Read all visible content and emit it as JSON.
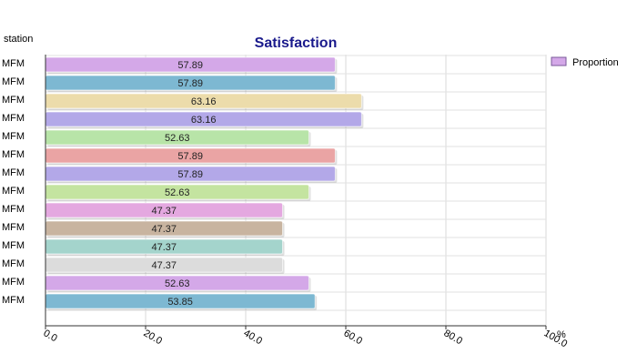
{
  "chart_data": {
    "type": "bar",
    "orientation": "horizontal",
    "title": "Satisfaction",
    "ylabel": "station",
    "xlabel": "%",
    "categories": [
      "MFM",
      "MFM",
      "MFM",
      "MFM",
      "MFM",
      "MFM",
      "MFM",
      "MFM",
      "MFM",
      "MFM",
      "MFM",
      "MFM",
      "MFM",
      "MFM"
    ],
    "series": [
      {
        "name": "Proportion",
        "values": [
          57.89,
          57.89,
          63.16,
          63.16,
          52.63,
          57.89,
          57.89,
          52.63,
          47.37,
          47.37,
          47.37,
          47.37,
          52.63,
          53.85
        ]
      }
    ],
    "value_labels": [
      "57.89",
      "57.89",
      "63.16",
      "63.16",
      "52.63",
      "57.89",
      "57.89",
      "52.63",
      "47.37",
      "47.37",
      "47.37",
      "47.37",
      "52.63",
      "53.85"
    ],
    "bar_colors": [
      "#d4a8e8",
      "#7db8d2",
      "#ecdcab",
      "#b3a8e8",
      "#b8e4a8",
      "#eaa4a4",
      "#b3a8e8",
      "#c4e4a0",
      "#e4a8e0",
      "#c8b4a0",
      "#a4d4cc",
      "#dcdcdc",
      "#d4a8e8",
      "#7db8d2"
    ],
    "legend_color": "#d4a8e8",
    "xlim": [
      0,
      100
    ],
    "x_ticks": [
      "0.0",
      "20.0",
      "40.0",
      "60.0",
      "80.0",
      "100.0"
    ],
    "legend_position": "top-right",
    "grid": true
  }
}
